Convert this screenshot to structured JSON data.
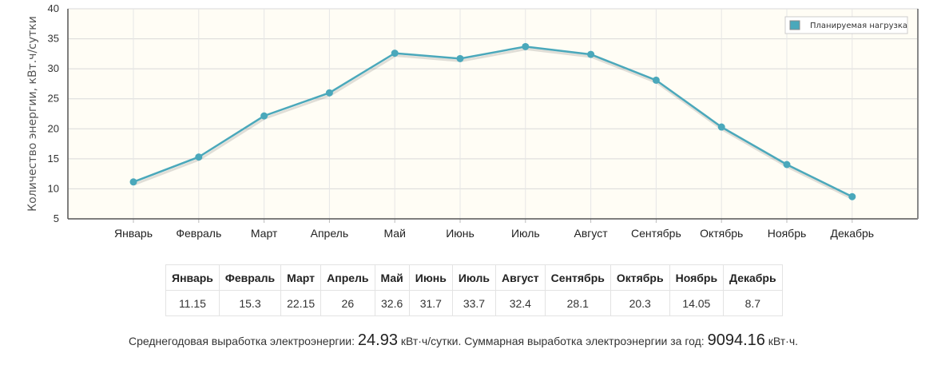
{
  "chart_data": {
    "type": "line",
    "ylabel": "Количество энергии, кВт.ч/сутки",
    "ylim": [
      5,
      40
    ],
    "yticks": [
      5,
      10,
      15,
      20,
      25,
      30,
      35,
      40
    ],
    "categories": [
      "Январь",
      "Февраль",
      "Март",
      "Апрель",
      "Май",
      "Июнь",
      "Июль",
      "Август",
      "Сентябрь",
      "Октябрь",
      "Ноябрь",
      "Декабрь"
    ],
    "series": [
      {
        "name": "Планируемая нагрузка",
        "color": "#4aa8bb",
        "values": [
          11.15,
          15.3,
          22.15,
          26,
          32.6,
          31.7,
          33.7,
          32.4,
          28.1,
          20.3,
          14.05,
          8.7
        ]
      }
    ],
    "grid": true,
    "legend_position": "top-right",
    "background": "#fffdf5"
  },
  "table": {
    "headers": [
      "Январь",
      "Февраль",
      "Март",
      "Апрель",
      "Май",
      "Июнь",
      "Июль",
      "Август",
      "Сентябрь",
      "Октябрь",
      "Ноябрь",
      "Декабрь"
    ],
    "values": [
      "11.15",
      "15.3",
      "22.15",
      "26",
      "32.6",
      "31.7",
      "33.7",
      "32.4",
      "28.1",
      "20.3",
      "14.05",
      "8.7"
    ]
  },
  "summary": {
    "avg_prefix": "Среднегодовая выработка электроэнергии:",
    "avg_value": "24.93",
    "avg_unit": "кВт·ч/сутки. Суммарная выработка электроэнергии за год:",
    "total_value": "9094.16",
    "total_unit": "кВт·ч."
  }
}
